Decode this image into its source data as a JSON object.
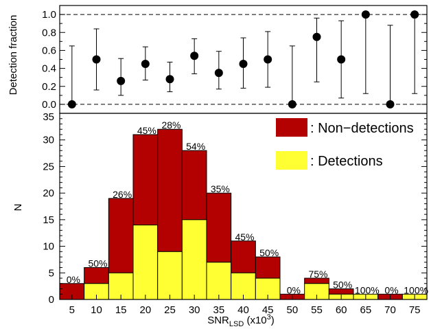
{
  "colors": {
    "non_detection": "#b30000",
    "detection": "#ffff33",
    "marker": "#000000",
    "axis": "#000000"
  },
  "chart_data": [
    {
      "type": "scatter",
      "ylabel": "Detection fraction",
      "ylim": [
        -0.1,
        1.1
      ],
      "yticks": [
        "0.0",
        "0.2",
        "0.4",
        "0.6",
        "0.8",
        "1.0"
      ],
      "reference_lines": [
        0.0,
        1.0
      ],
      "x": [
        5,
        10,
        15,
        20,
        25,
        30,
        35,
        40,
        45,
        50,
        55,
        60,
        65,
        70,
        75
      ],
      "y": [
        0.0,
        0.5,
        0.26,
        0.45,
        0.28,
        0.54,
        0.35,
        0.45,
        0.5,
        0.0,
        0.75,
        0.5,
        1.0,
        0.0,
        1.0
      ],
      "err_low": [
        0.0,
        0.16,
        0.1,
        0.27,
        0.14,
        0.34,
        0.17,
        0.18,
        0.19,
        0.0,
        0.25,
        0.07,
        0.12,
        0.0,
        0.12
      ],
      "err_high": [
        0.65,
        0.84,
        0.51,
        0.64,
        0.47,
        0.73,
        0.59,
        0.74,
        0.81,
        0.65,
        0.96,
        0.93,
        1.0,
        0.88,
        1.0
      ]
    },
    {
      "type": "bar",
      "stacked": true,
      "xlabel_main": "SNR",
      "xlabel_sub": "LSD",
      "xlabel_unit": " (x10",
      "xlabel_sup": "3",
      "xlabel_close": ")",
      "ylabel": "N",
      "ylim": [
        0,
        35
      ],
      "yticks": [
        "0",
        "5",
        "10",
        "15",
        "20",
        "25",
        "30",
        "35"
      ],
      "categories": [
        "5",
        "10",
        "15",
        "20",
        "25",
        "30",
        "35",
        "40",
        "45",
        "50",
        "55",
        "60",
        "65",
        "70",
        "75"
      ],
      "series": [
        {
          "name": ": Detections",
          "values": [
            0,
            3,
            5,
            14,
            9,
            15,
            7,
            5,
            4,
            0,
            3,
            1,
            1,
            0,
            1
          ]
        },
        {
          "name": ": Non−detections",
          "values": [
            3,
            3,
            14,
            17,
            23,
            13,
            13,
            6,
            4,
            1,
            1,
            1,
            0,
            1,
            0
          ]
        }
      ],
      "percent_labels": [
        "0%",
        "50%",
        "26%",
        "45%",
        "28%",
        "54%",
        "35%",
        "45%",
        "50%",
        "0%",
        "75%",
        "50%",
        "100%",
        "0%",
        "100%"
      ],
      "legend_position": "top-right"
    }
  ]
}
